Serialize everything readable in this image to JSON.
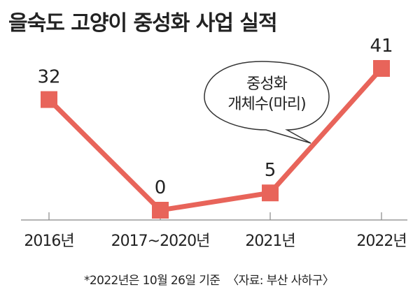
{
  "chart_data": {
    "type": "line",
    "title": "을숙도 고양이 중성화 사업 실적",
    "categories": [
      "2016년",
      "2017~2020년",
      "2021년",
      "2022년"
    ],
    "series": [
      {
        "values": [
          32,
          0,
          5,
          41
        ]
      }
    ],
    "data_labels": [
      "32",
      "0",
      "5",
      "41"
    ],
    "ylim": [
      0,
      45
    ],
    "grid": false,
    "annotation": [
      "중성화",
      "개체수(마리)"
    ],
    "colors": {
      "line": "#e8645a",
      "axis": "#888888"
    }
  },
  "footnote": {
    "note": "*2022년은 10월 26일 기준",
    "source": "〈자료: 부산 사하구〉"
  }
}
